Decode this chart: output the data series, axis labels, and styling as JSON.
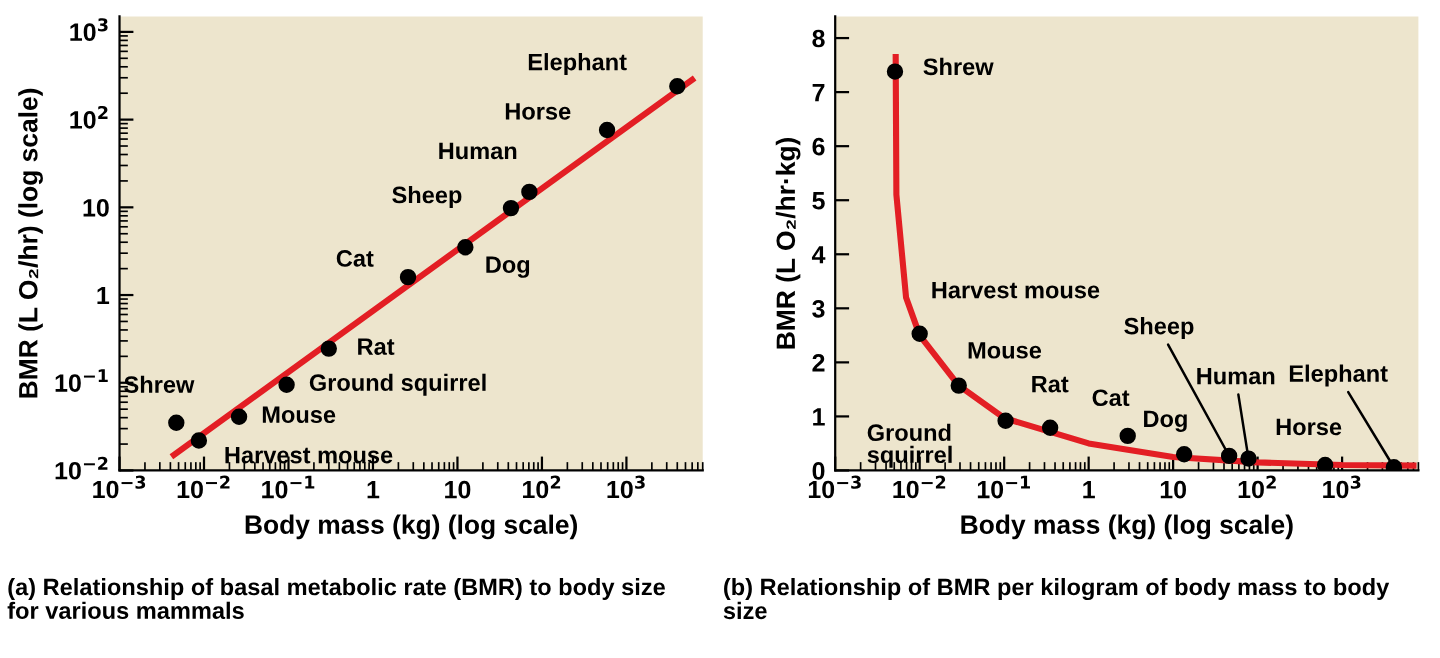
{
  "chart_data": [
    {
      "type": "scatter",
      "xlabel": "Body mass (kg) (log scale)",
      "ylabel": "BMR (L O₂/hr) (log scale)",
      "log": "xy",
      "xlim": [
        0.001,
        8000
      ],
      "ylim": [
        0.01,
        1500
      ],
      "xticks": [
        {
          "value": 0.001,
          "label": "10$^{−3}$"
        },
        {
          "value": 0.01,
          "label": "10$^{−2}$"
        },
        {
          "value": 0.1,
          "label": "10$^{−1}$"
        },
        1,
        10,
        {
          "value": 100,
          "label": "10$^{2}$"
        },
        {
          "value": 1000,
          "label": "10$^{3}$"
        }
      ],
      "yticks": [
        {
          "value": 0.01,
          "label": "10$^{−2}$"
        },
        {
          "value": 0.1,
          "label": "10$^{−1}$"
        },
        1,
        10,
        {
          "value": 100,
          "label": "10$^{2}$"
        },
        {
          "value": 1000,
          "label": "10$^{3}$"
        }
      ],
      "series": [
        {
          "color": "#000000",
          "marker": "circle",
          "x": [
            0.0047,
            0.0087,
            0.026,
            0.095,
            0.3,
            2.6,
            12.4,
            43,
            71,
            590,
            4000
          ],
          "values": [
            0.035,
            0.022,
            0.041,
            0.095,
            0.245,
            1.6,
            3.5,
            9.8,
            15,
            76,
            240
          ]
        },
        {
          "type": "line",
          "color": "#e31e24",
          "x": [
            0.0044,
            6000
          ],
          "values": [
            0.015,
            285
          ]
        }
      ],
      "annotations": [
        {
          "text": "Shrew",
          "x": 0.0047,
          "y": 0.035
        },
        {
          "text": "Harvest mouse",
          "x": 0.0087,
          "y": 0.022
        },
        {
          "text": "Mouse",
          "x": 0.026,
          "y": 0.041
        },
        {
          "text": "Ground squirrel",
          "x": 0.095,
          "y": 0.095
        },
        {
          "text": "Rat",
          "x": 0.3,
          "y": 0.245
        },
        {
          "text": "Cat",
          "x": 2.6,
          "y": 1.6
        },
        {
          "text": "Dog",
          "x": 12.4,
          "y": 3.5
        },
        {
          "text": "Sheep",
          "x": 43,
          "y": 9.8
        },
        {
          "text": "Human",
          "x": 71,
          "y": 15
        },
        {
          "text": "Horse",
          "x": 590,
          "y": 76
        },
        {
          "text": "Elephant",
          "x": 4000,
          "y": 240
        },
        "(a) Relationship of basal metabolic rate (BMR) to body size for various mammals"
      ]
    },
    {
      "type": "scatter",
      "xlabel": "Body mass (kg) (log scale)",
      "ylabel": "BMR (L O₂/hr·kg)",
      "log": "x",
      "xlim": [
        0.001,
        8000
      ],
      "ylim": [
        0,
        8.4
      ],
      "xticks": [
        {
          "value": 0.001,
          "label": "10$^{−3}$"
        },
        {
          "value": 0.01,
          "label": "10$^{−2}$"
        },
        {
          "value": 0.1,
          "label": "10$^{−1}$"
        },
        1,
        10,
        {
          "value": 100,
          "label": "10$^{2}$"
        },
        {
          "value": 1000,
          "label": "10$^{3}$"
        }
      ],
      "yticks": [
        0,
        1,
        2,
        3,
        4,
        5,
        6,
        7,
        8
      ],
      "series": [
        {
          "type": "line",
          "color": "#e31e24",
          "x": [
            0.0052,
            0.0053,
            0.0069,
            0.01,
            0.029,
            0.1,
            1,
            10,
            100,
            1000,
            7000
          ],
          "values": [
            7.65,
            5.1,
            3.2,
            2.5,
            1.57,
            0.97,
            0.5,
            0.25,
            0.15,
            0.1,
            0.09
          ]
        },
        {
          "color": "#000000",
          "marker": "circle",
          "x": [
            0.0051,
            0.01,
            0.029,
            0.104,
            0.35,
            2.9,
            13.5,
            46,
            78,
            630,
            4100
          ],
          "values": [
            7.38,
            2.53,
            1.57,
            0.92,
            0.79,
            0.64,
            0.3,
            0.27,
            0.22,
            0.1,
            0.06
          ]
        }
      ],
      "annotations": [
        {
          "text": "Shrew",
          "x": 0.0051,
          "y": 7.38
        },
        {
          "text": "Harvest mouse",
          "x": 0.01,
          "y": 2.53
        },
        {
          "text": "Mouse",
          "x": 0.029,
          "y": 1.57
        },
        {
          "text": "Ground\nsquirrel",
          "x": 0.104,
          "y": 0.92
        },
        {
          "text": "Rat",
          "x": 0.35,
          "y": 0.79
        },
        {
          "text": "Cat",
          "x": 2.9,
          "y": 0.64
        },
        {
          "text": "Dog",
          "x": 13.5,
          "y": 0.3
        },
        {
          "text": "Sheep",
          "x": 46,
          "y": 0.27
        },
        {
          "text": "Human",
          "x": 78,
          "y": 0.22
        },
        {
          "text": "Horse",
          "x": 630,
          "y": 0.1
        },
        {
          "text": "Elephant",
          "x": 4100,
          "y": 0.06
        },
        "(b) Relationship of BMR per kilogram of body mass to body size"
      ]
    }
  ]
}
